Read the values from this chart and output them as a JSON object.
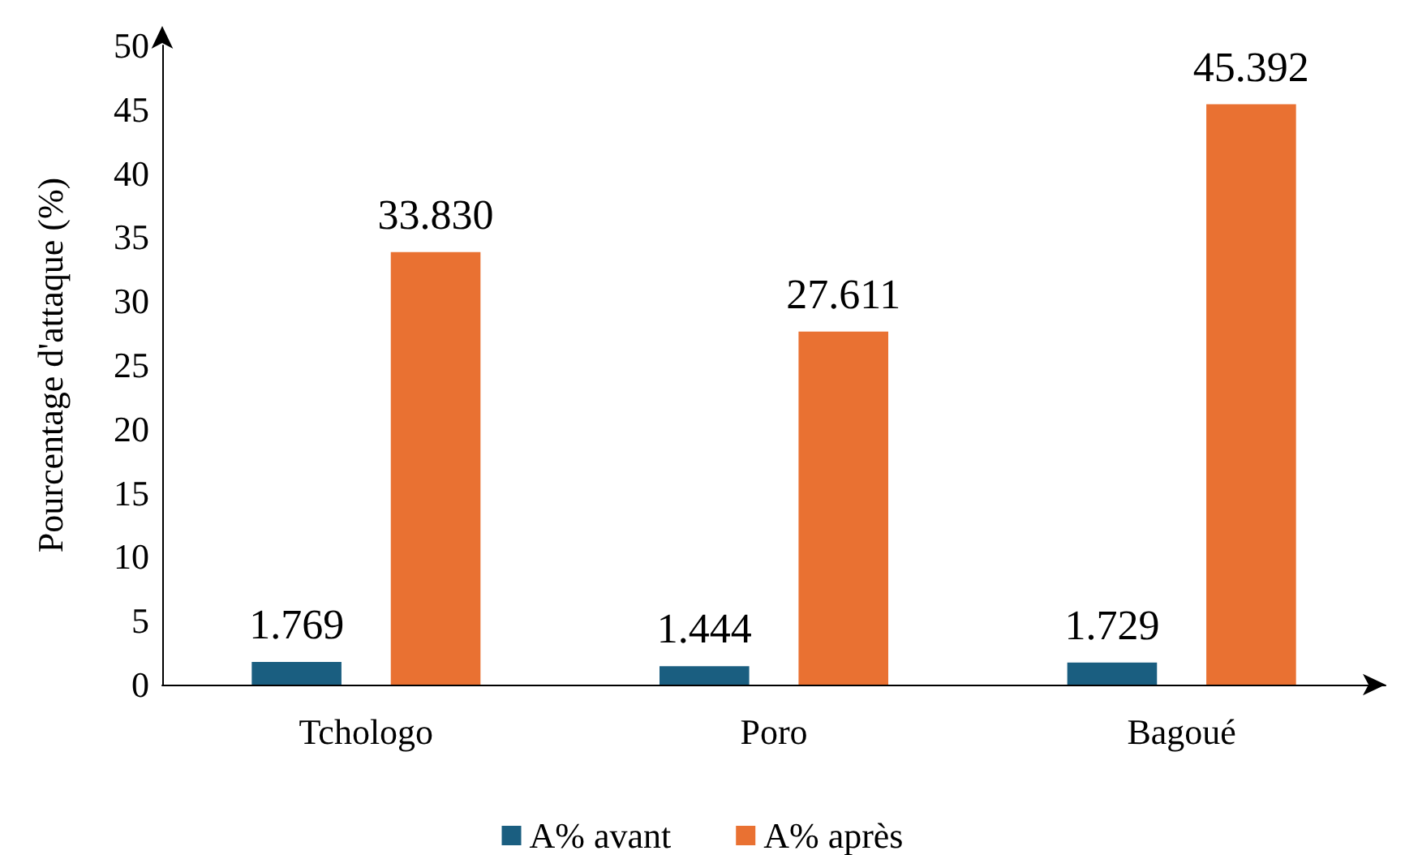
{
  "chart_data": {
    "type": "bar",
    "ylabel": "Pourcentage d'attaque (%)",
    "categories": [
      "Tchologo",
      "Poro",
      "Bagoué"
    ],
    "series": [
      {
        "name": "A% avant",
        "color": "#1a5e80",
        "values": [
          1.769,
          1.444,
          1.729
        ],
        "value_labels": [
          "1.769",
          "1.444",
          "1.729"
        ]
      },
      {
        "name": "A% après",
        "color": "#e97132",
        "values": [
          33.83,
          27.611,
          45.392
        ],
        "value_labels": [
          "33.830",
          "27.611",
          "45.392"
        ]
      }
    ],
    "ylim": [
      0,
      50
    ],
    "yticks": [
      0,
      5,
      10,
      15,
      20,
      25,
      30,
      35,
      40,
      45,
      50
    ],
    "grid": false,
    "legend": "bottom"
  }
}
